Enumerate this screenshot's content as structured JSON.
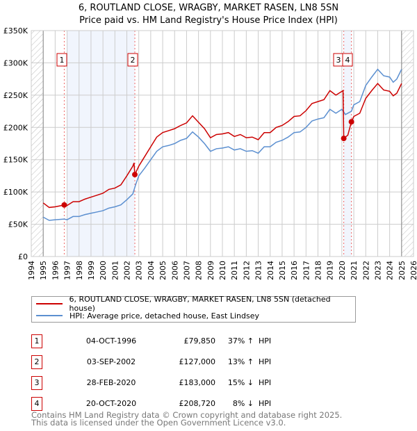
{
  "title": "6, ROUTLAND CLOSE, WRAGBY, MARKET RASEN, LN8 5SN",
  "subtitle": "Price paid vs. HM Land Registry's House Price Index (HPI)",
  "chart_data": {
    "type": "line",
    "xlim": [
      1994,
      2026
    ],
    "ylim": [
      0,
      350000
    ],
    "yticks": [
      {
        "v": 0,
        "label": "£0"
      },
      {
        "v": 50000,
        "label": "£50K"
      },
      {
        "v": 100000,
        "label": "£100K"
      },
      {
        "v": 150000,
        "label": "£150K"
      },
      {
        "v": 200000,
        "label": "£200K"
      },
      {
        "v": 250000,
        "label": "£250K"
      },
      {
        "v": 300000,
        "label": "£300K"
      },
      {
        "v": 350000,
        "label": "£350K"
      }
    ],
    "xticks": [
      "1994",
      "1995",
      "1996",
      "1997",
      "1998",
      "1999",
      "2000",
      "2001",
      "2002",
      "2003",
      "2004",
      "2005",
      "2006",
      "2007",
      "2008",
      "2009",
      "2010",
      "2011",
      "2012",
      "2013",
      "2014",
      "2015",
      "2016",
      "2017",
      "2018",
      "2019",
      "2020",
      "2021",
      "2022",
      "2023",
      "2024",
      "2025",
      "2026"
    ],
    "hatched_ranges": [
      [
        1994,
        1995
      ],
      [
        2025,
        2026
      ]
    ],
    "shaded_ranges": [
      [
        1997.0,
        2002.67
      ],
      [
        2020.16,
        2020.8
      ]
    ],
    "series": [
      {
        "name": "6, ROUTLAND CLOSE, WRAGBY, MARKET RASEN, LN8 5SN (detached house)",
        "color": "#cc0000",
        "x": [
          1995.0,
          1995.5,
          1996,
          1996.76,
          1997,
          1997.5,
          1998,
          1998.5,
          1999,
          1999.5,
          2000,
          2000.5,
          2001,
          2001.5,
          2002,
          2002.5,
          2002.6,
          2002.67,
          2003,
          2003.5,
          2004,
          2004.5,
          2005,
          2005.5,
          2006,
          2006.5,
          2007,
          2007.5,
          2008,
          2008.5,
          2009,
          2009.5,
          2010,
          2010.5,
          2011,
          2011.5,
          2012,
          2012.5,
          2013,
          2013.5,
          2014,
          2014.5,
          2015,
          2015.5,
          2016,
          2016.5,
          2017,
          2017.5,
          2018,
          2018.5,
          2019,
          2019.5,
          2020.1,
          2020.16,
          2020.5,
          2020.8,
          2021,
          2021.5,
          2022,
          2022.5,
          2023,
          2023.5,
          2024,
          2024.3,
          2024.6,
          2025
        ],
        "y": [
          83000,
          76000,
          77000,
          79850,
          79000,
          85000,
          85000,
          89000,
          92000,
          95000,
          98000,
          104000,
          106000,
          111000,
          125000,
          140000,
          145000,
          127000,
          140000,
          155000,
          170000,
          185000,
          192000,
          195000,
          198000,
          203000,
          207000,
          218000,
          208000,
          198000,
          184000,
          189000,
          190000,
          192000,
          186000,
          189000,
          184000,
          185000,
          181000,
          192000,
          192000,
          200000,
          203000,
          209000,
          217000,
          218000,
          226000,
          237000,
          240000,
          243000,
          257000,
          250000,
          257000,
          183000,
          188000,
          208720,
          217000,
          222000,
          245000,
          257000,
          268000,
          258000,
          256000,
          249000,
          253000,
          268000
        ]
      },
      {
        "name": "HPI: Average price, detached house, East Lindsey",
        "color": "#5b8fd0",
        "x": [
          1995.0,
          1995.5,
          1996,
          1996.76,
          1997,
          1997.5,
          1998,
          1998.5,
          1999,
          1999.5,
          2000,
          2000.5,
          2001,
          2001.5,
          2002,
          2002.5,
          2002.75,
          2003,
          2003.5,
          2004,
          2004.5,
          2005,
          2005.5,
          2006,
          2006.5,
          2007,
          2007.5,
          2008,
          2008.5,
          2009,
          2009.5,
          2010,
          2010.5,
          2011,
          2011.5,
          2012,
          2012.5,
          2013,
          2013.5,
          2014,
          2014.5,
          2015,
          2015.5,
          2016,
          2016.5,
          2017,
          2017.5,
          2018,
          2018.5,
          2019,
          2019.5,
          2020,
          2020.3,
          2020.8,
          2021,
          2021.5,
          2022,
          2022.5,
          2023,
          2023.5,
          2024,
          2024.3,
          2024.6,
          2025
        ],
        "y": [
          61000,
          56000,
          57000,
          58000,
          57000,
          62000,
          62000,
          65000,
          67000,
          69000,
          71000,
          75000,
          77000,
          80000,
          88000,
          97000,
          112000,
          125000,
          137000,
          150000,
          163000,
          170000,
          172000,
          175000,
          180000,
          183000,
          193000,
          185000,
          175000,
          163000,
          167000,
          168000,
          170000,
          165000,
          167000,
          163000,
          164000,
          160000,
          170000,
          170000,
          177000,
          180000,
          185000,
          192000,
          193000,
          200000,
          210000,
          213000,
          215000,
          228000,
          222000,
          228000,
          220000,
          225000,
          235000,
          240000,
          265000,
          278000,
          290000,
          280000,
          278000,
          270000,
          275000,
          290000
        ]
      }
    ],
    "sales": [
      {
        "label": "1",
        "x": 1996.76,
        "y": 79850
      },
      {
        "label": "2",
        "x": 2002.67,
        "y": 127000
      },
      {
        "label": "3",
        "x": 2020.16,
        "y": 183000
      },
      {
        "label": "4",
        "x": 2020.8,
        "y": 208720
      }
    ]
  },
  "legend": {
    "property": "6, ROUTLAND CLOSE, WRAGBY, MARKET RASEN, LN8 5SN (detached house)",
    "hpi": "HPI: Average price, detached house, East Lindsey"
  },
  "table": [
    {
      "num": "1",
      "date": "04-OCT-1996",
      "price": "£79,850",
      "pct": "37% ↑",
      "hpi": "HPI"
    },
    {
      "num": "2",
      "date": "03-SEP-2002",
      "price": "£127,000",
      "pct": "13% ↑",
      "hpi": "HPI"
    },
    {
      "num": "3",
      "date": "28-FEB-2020",
      "price": "£183,000",
      "pct": "15% ↓",
      "hpi": "HPI"
    },
    {
      "num": "4",
      "date": "20-OCT-2020",
      "price": "£208,720",
      "pct": "8% ↓",
      "hpi": "HPI"
    }
  ],
  "footer": {
    "line1": "Contains HM Land Registry data © Crown copyright and database right 2025.",
    "line2": "This data is licensed under the Open Government Licence v3.0."
  }
}
